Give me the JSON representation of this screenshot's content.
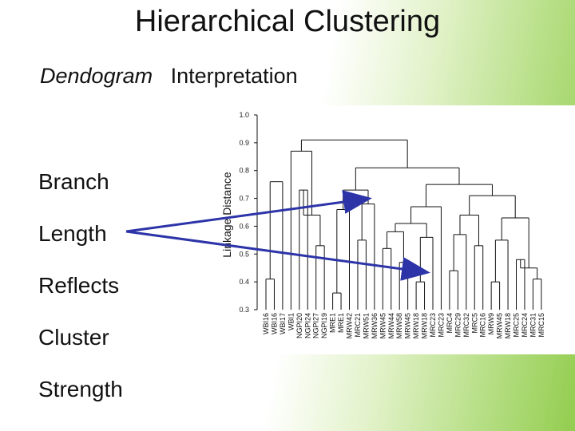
{
  "slide": {
    "title": "Hierarchical Clustering",
    "subtitle_italic": "Dendogram",
    "subtitle_rest": "Interpretation",
    "bullets": [
      "Branch",
      "Length",
      "Reflects",
      "Cluster",
      "Strength"
    ]
  },
  "chart_data": {
    "type": "dendrogram",
    "ylabel": "Linkage Distance",
    "ylim": [
      0.3,
      1.0
    ],
    "yticks": [
      "1.0",
      "0.9",
      "0.8",
      "0.7",
      "0.6",
      "0.5",
      "0.4",
      "0.3"
    ],
    "leaves": [
      "WBI16",
      "WBI16",
      "WBI17",
      "WBI1",
      "NGPI20",
      "NGPI24",
      "NGPI27",
      "NGPI19",
      "MRE1",
      "MRE1",
      "MRW42",
      "MRC21",
      "MRW51",
      "MRW36",
      "MRW45",
      "MRW44",
      "MRW58",
      "MRW45",
      "MRW18",
      "MRW18",
      "MRC23",
      "MRC23",
      "MRC4",
      "MRC29",
      "MRC32",
      "MRC5",
      "MRC16",
      "MRW9",
      "MRW45",
      "MRW18",
      "MRC25",
      "MRC24",
      "MRC31",
      "MRC15"
    ],
    "merges": [
      {
        "a": 0,
        "b": 1,
        "height": 0.41
      },
      {
        "a": 34,
        "b": 2,
        "height": 0.76
      },
      {
        "a": 4,
        "b": 5,
        "height": 0.73
      },
      {
        "a": 6,
        "b": 7,
        "height": 0.53
      },
      {
        "a": 36,
        "b": 37,
        "height": 0.64
      },
      {
        "a": 3,
        "b": 38,
        "height": 0.87
      },
      {
        "a": 8,
        "b": 9,
        "height": 0.36
      },
      {
        "a": 40,
        "b": 10,
        "height": 0.66
      },
      {
        "a": 11,
        "b": 12,
        "height": 0.55
      },
      {
        "a": 42,
        "b": 13,
        "height": 0.68
      },
      {
        "a": 41,
        "b": 43,
        "height": 0.73
      },
      {
        "a": 14,
        "b": 15,
        "height": 0.52
      },
      {
        "a": 16,
        "b": 17,
        "height": 0.47
      },
      {
        "a": 45,
        "b": 46,
        "height": 0.58
      },
      {
        "a": 18,
        "b": 19,
        "height": 0.4
      },
      {
        "a": 48,
        "b": 20,
        "height": 0.56
      },
      {
        "a": 47,
        "b": 49,
        "height": 0.61
      },
      {
        "a": 50,
        "b": 21,
        "height": 0.67
      },
      {
        "a": 22,
        "b": 23,
        "height": 0.44
      },
      {
        "a": 52,
        "b": 24,
        "height": 0.57
      },
      {
        "a": 25,
        "b": 26,
        "height": 0.53
      },
      {
        "a": 53,
        "b": 54,
        "height": 0.64
      },
      {
        "a": 27,
        "b": 28,
        "height": 0.4
      },
      {
        "a": 56,
        "b": 29,
        "height": 0.55
      },
      {
        "a": 30,
        "b": 31,
        "height": 0.48
      },
      {
        "a": 32,
        "b": 33,
        "height": 0.41
      },
      {
        "a": 58,
        "b": 59,
        "height": 0.45
      },
      {
        "a": 57,
        "b": 60,
        "height": 0.63
      },
      {
        "a": 55,
        "b": 61,
        "height": 0.71
      },
      {
        "a": 51,
        "b": 62,
        "height": 0.75
      },
      {
        "a": 44,
        "b": 63,
        "height": 0.81
      },
      {
        "a": 39,
        "b": 64,
        "height": 0.91
      }
    ]
  },
  "colors": {
    "arrow": "#2c34a8",
    "lines": "#111111"
  }
}
